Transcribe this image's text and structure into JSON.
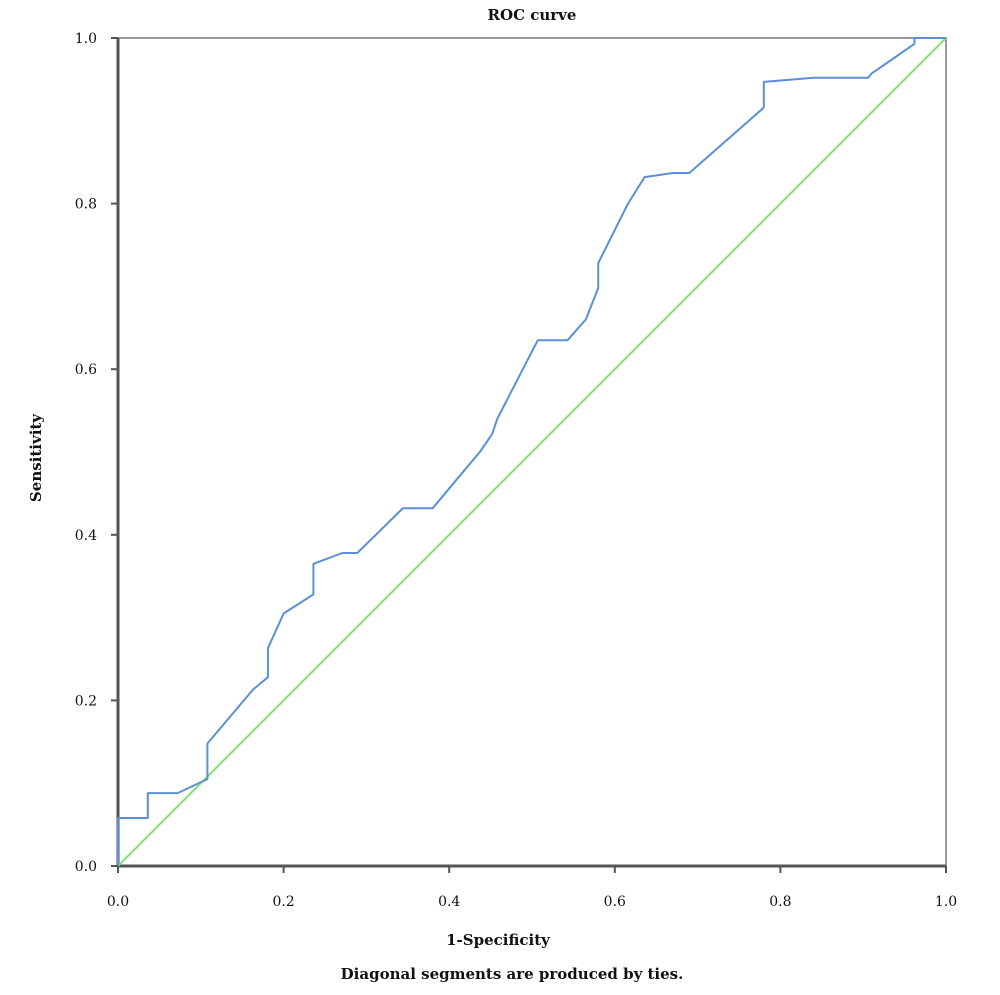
{
  "chart_data": {
    "type": "line",
    "title": "ROC curve",
    "xlabel": "1-Specificity",
    "ylabel": "Sensitivity",
    "footnote": "Diagonal segments are produced by ties.",
    "xlim": [
      0,
      1
    ],
    "ylim": [
      0,
      1
    ],
    "xticks": [
      {
        "value": 0.0,
        "label": "0.0"
      },
      {
        "value": 0.2,
        "label": "0.2"
      },
      {
        "value": 0.4,
        "label": "0.4"
      },
      {
        "value": 0.6,
        "label": "0.6"
      },
      {
        "value": 0.8,
        "label": "0.8"
      },
      {
        "value": 1.0,
        "label": "1.0"
      }
    ],
    "yticks": [
      {
        "value": 0.0,
        "label": "0.0"
      },
      {
        "value": 0.2,
        "label": "0.2"
      },
      {
        "value": 0.4,
        "label": "0.4"
      },
      {
        "value": 0.6,
        "label": "0.6"
      },
      {
        "value": 0.8,
        "label": "0.8"
      },
      {
        "value": 1.0,
        "label": "1.0"
      }
    ],
    "grid": false,
    "legend": "none",
    "series": [
      {
        "color": "#5b8fd6",
        "points": [
          [
            0.0,
            0.0
          ],
          [
            0.0,
            0.058
          ],
          [
            0.036,
            0.058
          ],
          [
            0.036,
            0.088
          ],
          [
            0.072,
            0.088
          ],
          [
            0.108,
            0.105
          ],
          [
            0.108,
            0.148
          ],
          [
            0.163,
            0.213
          ],
          [
            0.169,
            0.218
          ],
          [
            0.181,
            0.228
          ],
          [
            0.181,
            0.263
          ],
          [
            0.2,
            0.305
          ],
          [
            0.236,
            0.328
          ],
          [
            0.236,
            0.365
          ],
          [
            0.271,
            0.378
          ],
          [
            0.289,
            0.378
          ],
          [
            0.344,
            0.432
          ],
          [
            0.38,
            0.432
          ],
          [
            0.416,
            0.475
          ],
          [
            0.437,
            0.5
          ],
          [
            0.452,
            0.522
          ],
          [
            0.458,
            0.54
          ],
          [
            0.507,
            0.635
          ],
          [
            0.543,
            0.635
          ],
          [
            0.565,
            0.66
          ],
          [
            0.58,
            0.698
          ],
          [
            0.58,
            0.728
          ],
          [
            0.616,
            0.8
          ],
          [
            0.636,
            0.832
          ],
          [
            0.67,
            0.837
          ],
          [
            0.69,
            0.837
          ],
          [
            0.78,
            0.916
          ],
          [
            0.78,
            0.947
          ],
          [
            0.84,
            0.952
          ],
          [
            0.906,
            0.952
          ],
          [
            0.91,
            0.957
          ],
          [
            0.962,
            0.993
          ],
          [
            0.962,
            1.0
          ],
          [
            1.0,
            1.0
          ]
        ]
      },
      {
        "color": "#7fe36b",
        "points": [
          [
            0.0,
            0.0
          ],
          [
            1.0,
            1.0
          ]
        ]
      }
    ]
  }
}
